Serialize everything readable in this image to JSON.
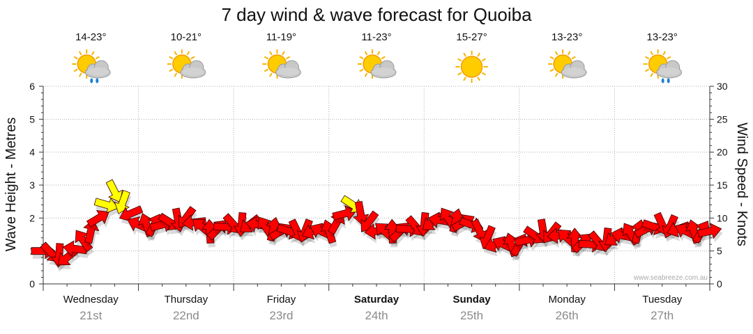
{
  "chart_data": {
    "type": "line",
    "title": "7 day wind & wave forecast for Quoiba",
    "ylabel_left": "Wave Height - Metres",
    "ylabel_right": "Wind Speed - Knots",
    "ylim_left": [
      0,
      6
    ],
    "ylim_right": [
      0,
      30
    ],
    "yticks_left": [
      "0",
      "1",
      "2",
      "3",
      "4",
      "5",
      "6"
    ],
    "yticks_right": [
      "0",
      "5",
      "10",
      "15",
      "20",
      "25",
      "30"
    ],
    "grid": true,
    "watermark": "www.seabreeze.com.au",
    "days": [
      {
        "day": "Wednesday",
        "date": "21st",
        "temp": "14-23°",
        "icon": "sun-cloud-rain-icon",
        "bold": false
      },
      {
        "day": "Thursday",
        "date": "22nd",
        "temp": "10-21°",
        "icon": "sun-cloud-icon",
        "bold": false
      },
      {
        "day": "Friday",
        "date": "23rd",
        "temp": "11-19°",
        "icon": "sun-cloud-icon",
        "bold": false
      },
      {
        "day": "Saturday",
        "date": "24th",
        "temp": "11-23°",
        "icon": "sun-cloud-icon",
        "bold": true
      },
      {
        "day": "Sunday",
        "date": "25th",
        "temp": "15-27°",
        "icon": "sun-icon",
        "bold": true
      },
      {
        "day": "Monday",
        "date": "26th",
        "temp": "13-23°",
        "icon": "sun-cloud-icon",
        "bold": false
      },
      {
        "day": "Tuesday",
        "date": "27th",
        "temp": "13-23°",
        "icon": "sun-cloud-rain-icon",
        "bold": false
      }
    ],
    "series": [
      {
        "name": "Wind Speed",
        "unit": "knots",
        "x_days": [
          0.0,
          0.25,
          0.5,
          0.75,
          1.0,
          1.25,
          1.5,
          1.75,
          2.0,
          2.25,
          2.5,
          2.75,
          3.0,
          3.25,
          3.5,
          3.75,
          4.0,
          4.25,
          4.5,
          4.75,
          5.0,
          5.25,
          5.5,
          5.75,
          6.0,
          6.25,
          6.5,
          6.75,
          7.0
        ],
        "values": [
          5,
          4,
          8,
          14,
          9,
          9,
          10,
          8,
          9,
          9,
          8,
          8,
          8,
          12,
          8,
          8,
          9,
          10,
          9,
          6,
          6,
          8,
          7,
          6,
          7,
          8,
          9,
          8,
          8
        ],
        "color_low": "#ff0000",
        "color_high": "#ffff00"
      }
    ],
    "direction_deg": [
      0,
      90,
      180,
      270
    ]
  }
}
